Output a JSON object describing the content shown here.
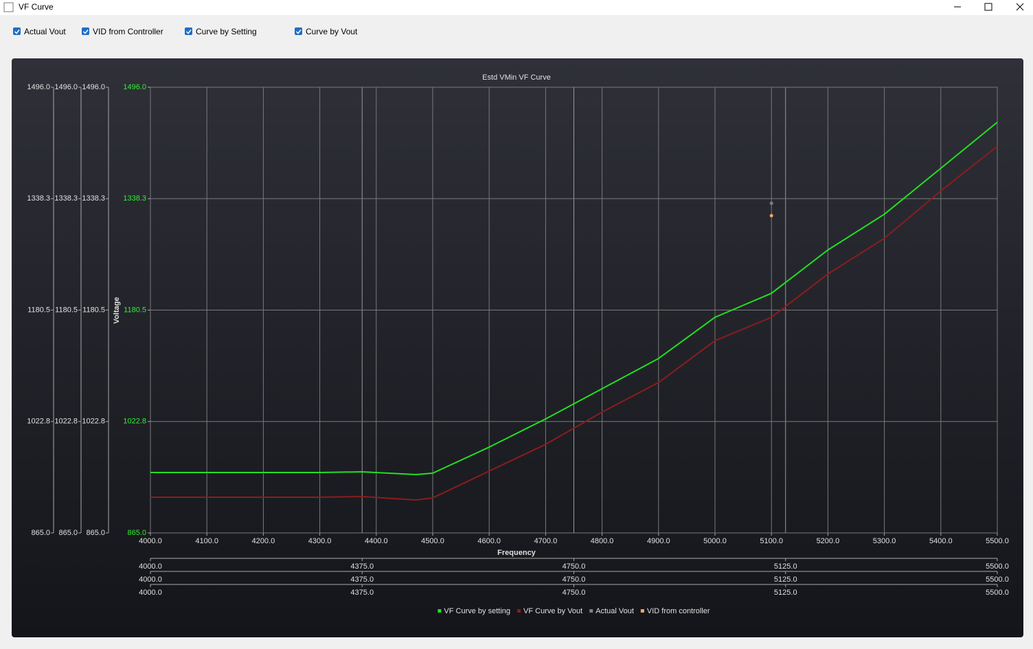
{
  "window": {
    "title": "VF Curve"
  },
  "toolbar": {
    "checkboxes": [
      "Actual Vout",
      "VID from Controller",
      "Curve by Setting",
      "Curve by Vout"
    ]
  },
  "chart_data": {
    "type": "line",
    "title": "Estd VMin VF Curve",
    "x_label": "Frequency",
    "y_label": "Voltage",
    "x": [
      4000,
      4100,
      4200,
      4300,
      4375,
      4470,
      4500,
      4600,
      4700,
      4800,
      4900,
      5000,
      5100,
      5200,
      5300,
      5400,
      5500
    ],
    "xlim": [
      4000,
      5500
    ],
    "xticks": [
      {
        "value": 4000,
        "label": "4000.0"
      },
      {
        "value": 4100,
        "label": "4100.0"
      },
      {
        "value": 4200,
        "label": "4200.0"
      },
      {
        "value": 4300,
        "label": "4300.0"
      },
      {
        "value": 4400,
        "label": "4400.0"
      },
      {
        "value": 4500,
        "label": "4500.0"
      },
      {
        "value": 4600,
        "label": "4600.0"
      },
      {
        "value": 4700,
        "label": "4700.0"
      },
      {
        "value": 4800,
        "label": "4800.0"
      },
      {
        "value": 4900,
        "label": "4900.0"
      },
      {
        "value": 5000,
        "label": "5000.0"
      },
      {
        "value": 5100,
        "label": "5100.0"
      },
      {
        "value": 5200,
        "label": "5200.0"
      },
      {
        "value": 5300,
        "label": "5300.0"
      },
      {
        "value": 5400,
        "label": "5400.0"
      },
      {
        "value": 5500,
        "label": "5500.0"
      }
    ],
    "ylim": [
      865,
      1496
    ],
    "yticks": [
      {
        "value": 865,
        "label": "865.0"
      },
      {
        "value": 1022.75,
        "label": "1022.8"
      },
      {
        "value": 1180.5,
        "label": "1180.5"
      },
      {
        "value": 1338.25,
        "label": "1338.3"
      },
      {
        "value": 1496,
        "label": "1496.0"
      }
    ],
    "ytick_color": "#33ee33",
    "extra_y_axes": [
      {
        "ylim": [
          865,
          1496
        ],
        "yticks": [
          {
            "value": 865,
            "label": "865.0"
          },
          {
            "value": 1022.75,
            "label": "1022.8"
          },
          {
            "value": 1180.5,
            "label": "1180.5"
          },
          {
            "value": 1338.25,
            "label": "1338.3"
          },
          {
            "value": 1496,
            "label": "1496.0"
          }
        ]
      },
      {
        "ylim": [
          865,
          1496
        ],
        "yticks": [
          {
            "value": 865,
            "label": "865.0"
          },
          {
            "value": 1022.75,
            "label": "1022.8"
          },
          {
            "value": 1180.5,
            "label": "1180.5"
          },
          {
            "value": 1338.25,
            "label": "1338.3"
          },
          {
            "value": 1496,
            "label": "1496.0"
          }
        ]
      },
      {
        "ylim": [
          865,
          1496
        ],
        "yticks": [
          {
            "value": 865,
            "label": "865.0"
          },
          {
            "value": 1022.75,
            "label": "1022.8"
          },
          {
            "value": 1180.5,
            "label": "1180.5"
          },
          {
            "value": 1338.25,
            "label": "1338.3"
          },
          {
            "value": 1496,
            "label": "1496.0"
          }
        ]
      }
    ],
    "extra_x_axes": [
      {
        "xlim": [
          4000,
          5500
        ],
        "xticks": [
          {
            "value": 4000,
            "label": "4000.0"
          },
          {
            "value": 4375,
            "label": "4375.0"
          },
          {
            "value": 4750,
            "label": "4750.0"
          },
          {
            "value": 5125,
            "label": "5125.0"
          },
          {
            "value": 5500,
            "label": "5500.0"
          }
        ]
      },
      {
        "xlim": [
          4000,
          5500
        ],
        "xticks": [
          {
            "value": 4000,
            "label": "4000.0"
          },
          {
            "value": 4375,
            "label": "4375.0"
          },
          {
            "value": 4750,
            "label": "4750.0"
          },
          {
            "value": 5125,
            "label": "5125.0"
          },
          {
            "value": 5500,
            "label": "5500.0"
          }
        ]
      },
      {
        "xlim": [
          4000,
          5500
        ],
        "xticks": [
          {
            "value": 4000,
            "label": "4000.0"
          },
          {
            "value": 4375,
            "label": "4375.0"
          },
          {
            "value": 4750,
            "label": "4750.0"
          },
          {
            "value": 5125,
            "label": "5125.0"
          },
          {
            "value": 5500,
            "label": "5500.0"
          }
        ]
      }
    ],
    "series": [
      {
        "name": "VF Curve by setting",
        "color": "#22e022",
        "values": [
          950.6,
          950.6,
          950.6,
          950.6,
          951.5,
          947.6,
          949.6,
          986.5,
          1026.4,
          1069.2,
          1112,
          1170.3,
          1204.3,
          1265.6,
          1316.2,
          1381.3,
          1446.4
        ]
      },
      {
        "name": "VF Curve by Vout",
        "color": "#8b1d1d",
        "values": [
          915.6,
          915.6,
          915.6,
          915.6,
          916.5,
          911.7,
          914.6,
          952.5,
          990.4,
          1036.1,
          1077.9,
          1137.2,
          1170.3,
          1231.6,
          1282.1,
          1349.2,
          1412.4
        ]
      },
      {
        "name": "Actual Vout",
        "color": "#7a808c",
        "type": "scatter",
        "x": [
          5100
        ],
        "values": [
          1331.7
        ]
      },
      {
        "name": "VID from controller",
        "color": "#f0a860",
        "type": "scatter",
        "x": [
          5100
        ],
        "values": [
          1314.2
        ]
      }
    ],
    "grid": true,
    "legend": "bottom"
  }
}
